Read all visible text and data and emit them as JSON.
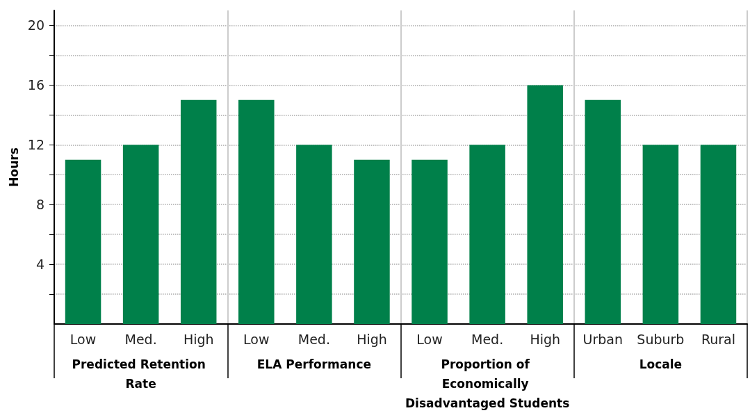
{
  "chart_data": {
    "type": "bar",
    "ylabel": "Hours",
    "categories": [
      "Low",
      "Med.",
      "High",
      "Low",
      "Med.",
      "High",
      "Low",
      "Med.",
      "High",
      "Urban",
      "Suburb",
      "Rural"
    ],
    "values": [
      11,
      12,
      15,
      15,
      12,
      11,
      11,
      12,
      16,
      15,
      12,
      12
    ],
    "color": "#00804a",
    "ylim": [
      0,
      21
    ],
    "yticks": [
      {
        "value": 2,
        "label": null
      },
      4,
      {
        "value": 6,
        "label": null
      },
      8,
      {
        "value": 10,
        "label": null
      },
      12,
      {
        "value": 14,
        "label": null
      },
      16,
      {
        "value": 18,
        "label": null
      },
      20
    ],
    "grid": "y",
    "annotations": [
      "Predicted Retention Rate",
      "ELA Performance",
      "Proportion of Economically Disadvantaged Students",
      "Locale"
    ]
  }
}
